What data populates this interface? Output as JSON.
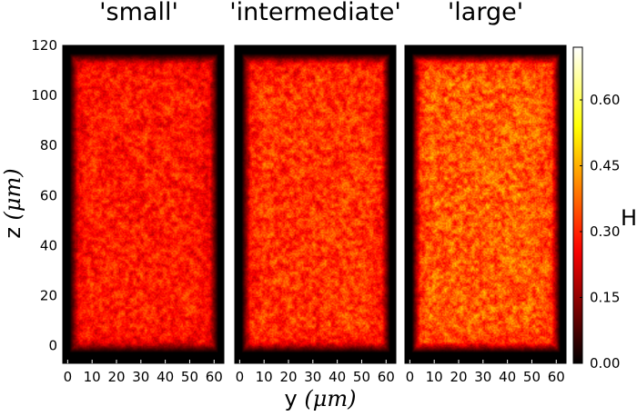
{
  "chart_data": {
    "type": "heatmap",
    "panels": [
      {
        "title": "'small'",
        "mean_h": 0.4
      },
      {
        "title": "'intermediate'",
        "mean_h": 0.44
      },
      {
        "title": "'large'",
        "mean_h": 0.5
      }
    ],
    "x": {
      "label": "y (μm)",
      "label_prefix": "y ",
      "label_unit": "μm",
      "ticks": [
        0,
        10,
        20,
        30,
        40,
        50,
        60
      ],
      "range": [
        -2,
        64
      ]
    },
    "y": {
      "label": "z (μm)",
      "label_prefix": "z ",
      "label_unit": "μm",
      "ticks": [
        0,
        20,
        40,
        60,
        80,
        100,
        120
      ],
      "range": [
        -7,
        120
      ]
    },
    "colorbar": {
      "label": "H",
      "ticks": [
        0.0,
        0.15,
        0.3,
        0.45,
        0.6
      ],
      "tick_labels": [
        "0.00",
        "0.15",
        "0.30",
        "0.45",
        "0.60"
      ],
      "range": [
        0,
        0.72
      ],
      "colormap": "hot"
    },
    "grid": false
  }
}
